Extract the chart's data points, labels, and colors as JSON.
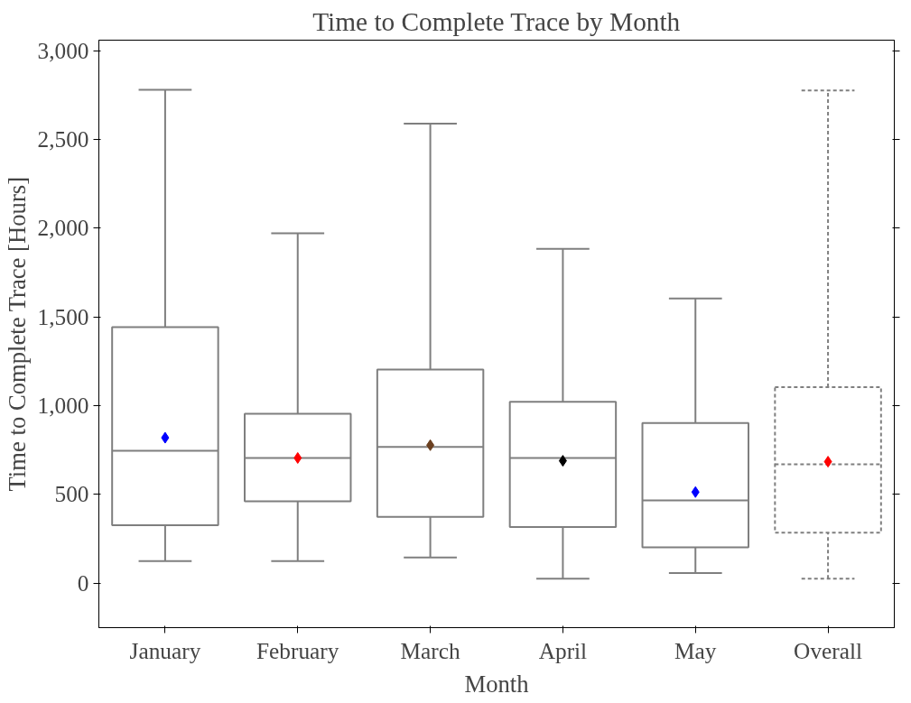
{
  "chart_data": {
    "type": "box",
    "title": "Time to Complete Trace by Month",
    "xlabel": "Month",
    "ylabel": "Time to Complete Trace [Hours]",
    "categories": [
      "January",
      "February",
      "March",
      "April",
      "May",
      "Overall"
    ],
    "ylim": [
      -250,
      3060
    ],
    "yticks": [
      {
        "value": 0,
        "label": "0"
      },
      {
        "value": 500,
        "label": "500"
      },
      {
        "value": 1000,
        "label": "1,000"
      },
      {
        "value": 1500,
        "label": "1,500"
      },
      {
        "value": 2000,
        "label": "2,000"
      },
      {
        "value": 2500,
        "label": "2,500"
      },
      {
        "value": 3000,
        "label": "3,000"
      }
    ],
    "grid": false,
    "marker": "diamond",
    "series": [
      {
        "color": "#7f7f7f",
        "line_style": "solid",
        "boxes": [
          {
            "low": 125,
            "q1": 327,
            "median": 747,
            "q3": 1443,
            "high": 2780
          },
          {
            "low": 125,
            "q1": 462,
            "median": 706,
            "q3": 955,
            "high": 1972
          },
          {
            "low": 145,
            "q1": 374,
            "median": 768,
            "q3": 1204,
            "high": 2590
          },
          {
            "low": 26,
            "q1": 317,
            "median": 706,
            "q3": 1022,
            "high": 1884
          },
          {
            "low": 57,
            "q1": 202,
            "median": 467,
            "q3": 903,
            "high": 1604
          },
          null
        ]
      },
      {
        "color": "#7f7f7f",
        "line_style": "dashed",
        "boxes": [
          null,
          null,
          null,
          null,
          null,
          {
            "low": 26,
            "q1": 285,
            "median": 670,
            "q3": 1105,
            "high": 2777
          }
        ]
      },
      {
        "type": "scatter",
        "x": [
          "January",
          "February",
          "March",
          "April",
          "May",
          "Overall"
        ],
        "values": [
          820,
          706,
          778,
          690,
          514,
          685
        ],
        "colors": [
          "#0000ff",
          "#ff0000",
          "#6b4020",
          "#000000",
          "#0000ff",
          "#ff0000"
        ]
      }
    ]
  }
}
